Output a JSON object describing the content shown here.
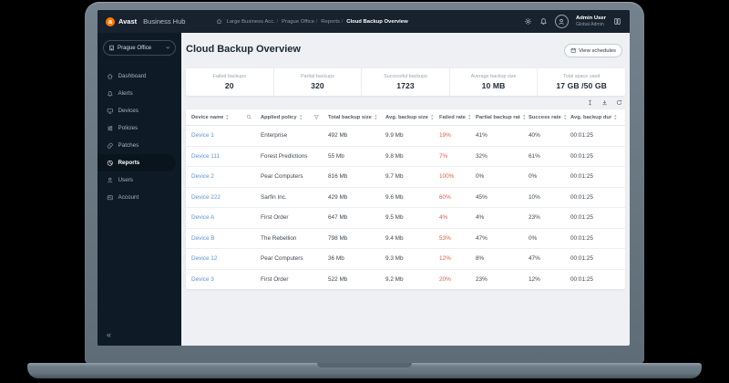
{
  "colors": {
    "accent_orange": "#FF7800",
    "link_blue": "#6292CF",
    "failed_red": "#DD5F45",
    "topbar_bg": "#17222E",
    "sidebar_bg": "#0E1B27",
    "content_bg": "#EEF0F3"
  },
  "topbar": {
    "logo_letter": "a",
    "brand_bold": "Avast",
    "brand_rest": "Business Hub",
    "breadcrumb": [
      "Large Business Acc.",
      "Prague Office",
      "Reports",
      "Cloud Backup Overview"
    ],
    "icons": [
      "gear-icon",
      "bell-icon",
      "apps-icon"
    ],
    "user": {
      "name": "Admin User",
      "role": "Global Admin"
    }
  },
  "sidebar": {
    "org_selector": {
      "label": "Prague Office",
      "icon": "building-icon"
    },
    "items": [
      {
        "label": "Dashboard",
        "icon": "home-icon",
        "active": false
      },
      {
        "label": "Alerts",
        "icon": "bell-icon",
        "active": false
      },
      {
        "label": "Devices",
        "icon": "monitor-icon",
        "active": false
      },
      {
        "label": "Policies",
        "icon": "sliders-icon",
        "active": false
      },
      {
        "label": "Patches",
        "icon": "patch-icon",
        "active": false
      },
      {
        "label": "Reports",
        "icon": "pie-chart-icon",
        "active": true
      },
      {
        "label": "Users",
        "icon": "user-icon",
        "active": false
      },
      {
        "label": "Account",
        "icon": "card-icon",
        "active": false
      }
    ],
    "collapse_glyph": "«"
  },
  "main": {
    "title": "Cloud Backup Overview",
    "schedules_button": {
      "label": "View schedules",
      "icon": "calendar-icon"
    },
    "stats": [
      {
        "label": "Failed backups",
        "value": "20"
      },
      {
        "label": "Partial backups",
        "value": "320"
      },
      {
        "label": "Successful backups",
        "value": "1723"
      },
      {
        "label": "Average backup size",
        "value": "10 MB"
      },
      {
        "label": "Total space used",
        "value": "17 GB /50 GB"
      }
    ],
    "table": {
      "tools": [
        "column-cursor-icon",
        "download-icon",
        "refresh-icon"
      ],
      "columns": [
        "Device name",
        "Applied policy",
        "Total backup size",
        "Avg. backup size",
        "Failed rate",
        "Partial backup rate",
        "Success rate",
        "Avg. backup duration"
      ],
      "rows": [
        {
          "device": "Device 1",
          "policy": "Enterprise",
          "total_size": "492 Mb",
          "avg_size": "9.9 Mb",
          "failed_rate": "19%",
          "partial_rate": "41%",
          "success_rate": "40%",
          "duration": "00:01:25"
        },
        {
          "device": "Device 111",
          "policy": "Forest Predictions",
          "total_size": "55 Mb",
          "avg_size": "9.8 Mb",
          "failed_rate": "7%",
          "partial_rate": "32%",
          "success_rate": "61%",
          "duration": "00:01:25"
        },
        {
          "device": "Device 2",
          "policy": "Pear Computers",
          "total_size": "816 Mb",
          "avg_size": "9.7 Mb",
          "failed_rate": "100%",
          "partial_rate": "0%",
          "success_rate": "0%",
          "duration": "00:01:25"
        },
        {
          "device": "Device 222",
          "policy": "Sarfin Inc.",
          "total_size": "429 Mb",
          "avg_size": "9.6 Mb",
          "failed_rate": "60%",
          "partial_rate": "45%",
          "success_rate": "10%",
          "duration": "00:01:25"
        },
        {
          "device": "Device A",
          "policy": "First Order",
          "total_size": "647 Mb",
          "avg_size": "9.5 Mb",
          "failed_rate": "4%",
          "partial_rate": "4%",
          "success_rate": "23%",
          "duration": "00:01:25"
        },
        {
          "device": "Device B",
          "policy": "The Rebellion",
          "total_size": "798 Mb",
          "avg_size": "9.4 Mb",
          "failed_rate": "53%",
          "partial_rate": "47%",
          "success_rate": "0%",
          "duration": "00:01:25"
        },
        {
          "device": "Device 12",
          "policy": "Pear Computers",
          "total_size": "36 Mb",
          "avg_size": "9.3 Mb",
          "failed_rate": "12%",
          "partial_rate": "8%",
          "success_rate": "47%",
          "duration": "00:01:25"
        },
        {
          "device": "Device 3",
          "policy": "First Order",
          "total_size": "522 Mb",
          "avg_size": "9.2 Mb",
          "failed_rate": "20%",
          "partial_rate": "23%",
          "success_rate": "12%",
          "duration": "00:01:25"
        }
      ]
    }
  }
}
